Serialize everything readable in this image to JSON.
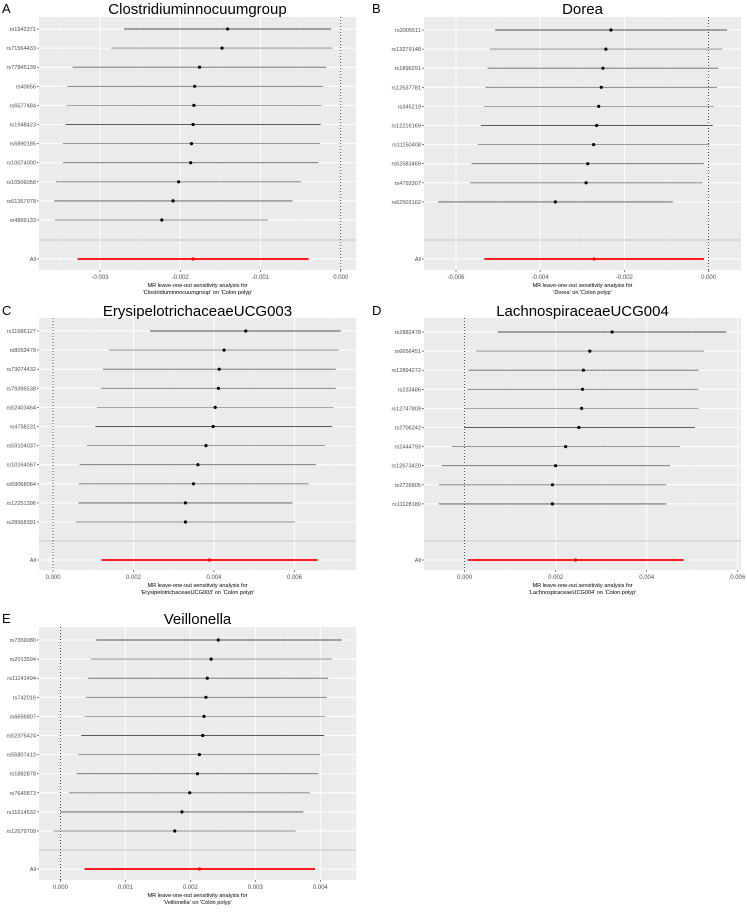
{
  "chart_data": [
    {
      "type": "forest",
      "panel_label": "A",
      "title": "Clostridiuminnocuumgroup",
      "xlabel_lines": [
        "MR leave-one-out sensitivity analysis for",
        "'Clostridiuminnocuumgroup' on 'Colon polyp'"
      ],
      "xlim": [
        -0.00376,
        0.00019
      ],
      "xticks": [
        -0.003,
        -0.002,
        -0.001,
        0.0
      ],
      "xtick_labels": [
        "-0.003",
        "-0.002",
        "-0.001",
        "0.000"
      ],
      "reference_line": 0,
      "grid": true,
      "rows": [
        {
          "snp": "rs1942371",
          "b": -0.00141,
          "lo": -0.0027,
          "hi": -0.00012
        },
        {
          "snp": "rs71564433",
          "b": -0.00148,
          "lo": -0.00286,
          "hi": -0.0001
        },
        {
          "snp": "rs77845139",
          "b": -0.00176,
          "lo": -0.00334,
          "hi": -0.00018
        },
        {
          "snp": "rs40656",
          "b": -0.00182,
          "lo": -0.00341,
          "hi": -0.00022
        },
        {
          "snp": "rs6577484",
          "b": -0.00183,
          "lo": -0.00342,
          "hi": -0.00024
        },
        {
          "snp": "rs1948423",
          "b": -0.00184,
          "lo": -0.00343,
          "hi": -0.00025
        },
        {
          "snp": "rs6890185",
          "b": -0.00186,
          "lo": -0.00346,
          "hi": -0.00026
        },
        {
          "snp": "rs10074000",
          "b": -0.00187,
          "lo": -0.00346,
          "hi": -0.00028
        },
        {
          "snp": "rs10506058",
          "b": -0.00202,
          "lo": -0.00355,
          "hi": -0.00049
        },
        {
          "snp": "rs61267978",
          "b": -0.00209,
          "lo": -0.00357,
          "hi": -0.0006
        },
        {
          "snp": "rs4869133",
          "b": -0.00223,
          "lo": -0.00356,
          "hi": -0.00091
        }
      ],
      "overall": {
        "snp": "All",
        "b": -0.00184,
        "lo": -0.00328,
        "hi": -0.0004
      }
    },
    {
      "type": "forest",
      "panel_label": "B",
      "title": "Dorea",
      "xlabel_lines": [
        "MR leave-one-out sensitivity analysis for",
        "'Dorea' on 'Colon polyp'"
      ],
      "xlim": [
        -0.00676,
        0.00077
      ],
      "xticks": [
        -0.006,
        -0.004,
        -0.002,
        0.0
      ],
      "xtick_labels": [
        "-0.006",
        "-0.004",
        "-0.002",
        "0.000"
      ],
      "reference_line": 0,
      "grid": true,
      "rows": [
        {
          "snp": "rs3005511",
          "b": -0.00232,
          "lo": -0.00507,
          "hi": 0.00044
        },
        {
          "snp": "rs13279148",
          "b": -0.00244,
          "lo": -0.0052,
          "hi": 0.00033
        },
        {
          "snp": "rs1899291",
          "b": -0.00251,
          "lo": -0.00525,
          "hi": 0.00023
        },
        {
          "snp": "rs12537781",
          "b": -0.00255,
          "lo": -0.0053,
          "hi": 0.0002
        },
        {
          "snp": "rs345219",
          "b": -0.00261,
          "lo": -0.00534,
          "hi": 0.00013
        },
        {
          "snp": "rs12216169",
          "b": -0.00266,
          "lo": -0.00541,
          "hi": 0.0001
        },
        {
          "snp": "rs11150408",
          "b": -0.00273,
          "lo": -0.00548,
          "hi": 2e-05
        },
        {
          "snp": "rs62583469",
          "b": -0.00287,
          "lo": -0.00563,
          "hi": -0.00011
        },
        {
          "snp": "rs4793307",
          "b": -0.00291,
          "lo": -0.00567,
          "hi": -0.00014
        },
        {
          "snp": "rs62503162",
          "b": -0.00364,
          "lo": -0.00643,
          "hi": -0.00085
        }
      ],
      "overall": {
        "snp": "All",
        "b": -0.00272,
        "lo": -0.00533,
        "hi": -0.00011
      }
    },
    {
      "type": "forest",
      "panel_label": "C",
      "title": "ErysipelotrichaceaeUCG003",
      "xlabel_lines": [
        "MR leave-one-out sensitivity analysis for",
        "'ErysipelotrichaceaeUCG003' on 'Colon polyp'"
      ],
      "xlim": [
        -0.00035,
        0.00753
      ],
      "xticks": [
        0.0,
        0.002,
        0.004,
        0.006
      ],
      "xtick_labels": [
        "0.000",
        "0.002",
        "0.004",
        "0.006"
      ],
      "reference_line": 0,
      "grid": true,
      "rows": [
        {
          "snp": "rs11686127",
          "b": 0.00479,
          "lo": 0.00241,
          "hi": 0.00715
        },
        {
          "snp": "rs8053479",
          "b": 0.00425,
          "lo": 0.00139,
          "hi": 0.0071
        },
        {
          "snp": "rs73074432",
          "b": 0.00413,
          "lo": 0.00124,
          "hi": 0.00703
        },
        {
          "snp": "rs79396538",
          "b": 0.00411,
          "lo": 0.00119,
          "hi": 0.00703
        },
        {
          "snp": "rs62403464",
          "b": 0.00403,
          "lo": 0.00109,
          "hi": 0.00698
        },
        {
          "snp": "rs4758231",
          "b": 0.00398,
          "lo": 0.00105,
          "hi": 0.00693
        },
        {
          "snp": "rs59104037",
          "b": 0.0038,
          "lo": 0.00084,
          "hi": 0.00676
        },
        {
          "snp": "rs10164067",
          "b": 0.0036,
          "lo": 0.00066,
          "hi": 0.00653
        },
        {
          "snp": "rs59068084",
          "b": 0.00349,
          "lo": 0.00064,
          "hi": 0.00635
        },
        {
          "snp": "rs12251396",
          "b": 0.00329,
          "lo": 0.00063,
          "hi": 0.00595
        },
        {
          "snp": "rs28568391",
          "b": 0.00329,
          "lo": 0.00056,
          "hi": 0.00601
        }
      ],
      "overall": {
        "snp": "All",
        "b": 0.00388,
        "lo": 0.0012,
        "hi": 0.00657
      }
    },
    {
      "type": "forest",
      "panel_label": "D",
      "title": "LachnospiraceaeUCG004",
      "xlabel_lines": [
        "MR leave-one-out sensitivity analysis for",
        "'LachnospiraceaeUCG004' on 'Colon polyp'"
      ],
      "xlim": [
        -0.00089,
        0.00607
      ],
      "xticks": [
        0.0,
        0.002,
        0.004,
        0.006
      ],
      "xtick_labels": [
        "0.000",
        "0.002",
        "0.004",
        "0.006"
      ],
      "reference_line": 0,
      "grid": true,
      "rows": [
        {
          "snp": "rs2882478",
          "b": 0.00324,
          "lo": 0.00073,
          "hi": 0.00575
        },
        {
          "snp": "rs6656451",
          "b": 0.00275,
          "lo": 0.00026,
          "hi": 0.00526
        },
        {
          "snp": "rs12894272",
          "b": 0.00261,
          "lo": 8e-05,
          "hi": 0.00514
        },
        {
          "snp": "rs233486",
          "b": 0.00259,
          "lo": 6e-05,
          "hi": 0.00513
        },
        {
          "snp": "rs12747809",
          "b": 0.00257,
          "lo": 1e-05,
          "hi": 0.00514
        },
        {
          "snp": "rs2706242",
          "b": 0.00251,
          "lo": -1e-05,
          "hi": 0.00506
        },
        {
          "snp": "rs2444793",
          "b": 0.00222,
          "lo": -0.00028,
          "hi": 0.00473
        },
        {
          "snp": "rs12673420",
          "b": 0.002,
          "lo": -0.0005,
          "hi": 0.00451
        },
        {
          "snp": "rs2726805",
          "b": 0.00193,
          "lo": -0.00056,
          "hi": 0.00443
        },
        {
          "snp": "rs11128180",
          "b": 0.00193,
          "lo": -0.00057,
          "hi": 0.00443
        }
      ],
      "overall": {
        "snp": "All",
        "b": 0.00244,
        "lo": 7e-05,
        "hi": 0.00481
      }
    },
    {
      "type": "forest",
      "panel_label": "E",
      "title": "Veillonella",
      "xlabel_lines": [
        "MR leave-one-out sensitivity analysis for",
        "'Veillonella' on 'Colon polyp'"
      ],
      "xlim": [
        -0.00033,
        0.00455
      ],
      "xticks": [
        0.0,
        0.001,
        0.002,
        0.003,
        0.004
      ],
      "xtick_labels": [
        "0.000",
        "0.001",
        "0.002",
        "0.003",
        "0.004"
      ],
      "reference_line": 0,
      "grid": true,
      "rows": [
        {
          "snp": "rs7359080",
          "b": 0.00243,
          "lo": 0.00055,
          "hi": 0.00433
        },
        {
          "snp": "rs2013594",
          "b": 0.00232,
          "lo": 0.00047,
          "hi": 0.00418
        },
        {
          "snp": "rs11141494",
          "b": 0.00226,
          "lo": 0.00042,
          "hi": 0.00412
        },
        {
          "snp": "rs742016",
          "b": 0.00224,
          "lo": 0.00039,
          "hi": 0.0041
        },
        {
          "snp": "rs6656807",
          "b": 0.00221,
          "lo": 0.00037,
          "hi": 0.00408
        },
        {
          "snp": "rs62376424",
          "b": 0.00219,
          "lo": 0.00032,
          "hi": 0.00406
        },
        {
          "snp": "rs55807413",
          "b": 0.00214,
          "lo": 0.00027,
          "hi": 0.004
        },
        {
          "snp": "rs1882878",
          "b": 0.00211,
          "lo": 0.00025,
          "hi": 0.00397
        },
        {
          "snp": "rs7645873",
          "b": 0.00199,
          "lo": 0.00013,
          "hi": 0.00384
        },
        {
          "snp": "rs11614532",
          "b": 0.00187,
          "lo": 0.0,
          "hi": 0.00374
        },
        {
          "snp": "rs12679709",
          "b": 0.00176,
          "lo": -0.00011,
          "hi": 0.00362
        }
      ],
      "overall": {
        "snp": "All",
        "b": 0.00214,
        "lo": 0.00037,
        "hi": 0.00392
      }
    }
  ],
  "colors": {
    "panel_bg": "#ebebeb",
    "grid": "#ffffff",
    "overall": "#ff0000",
    "point": "#000000"
  }
}
